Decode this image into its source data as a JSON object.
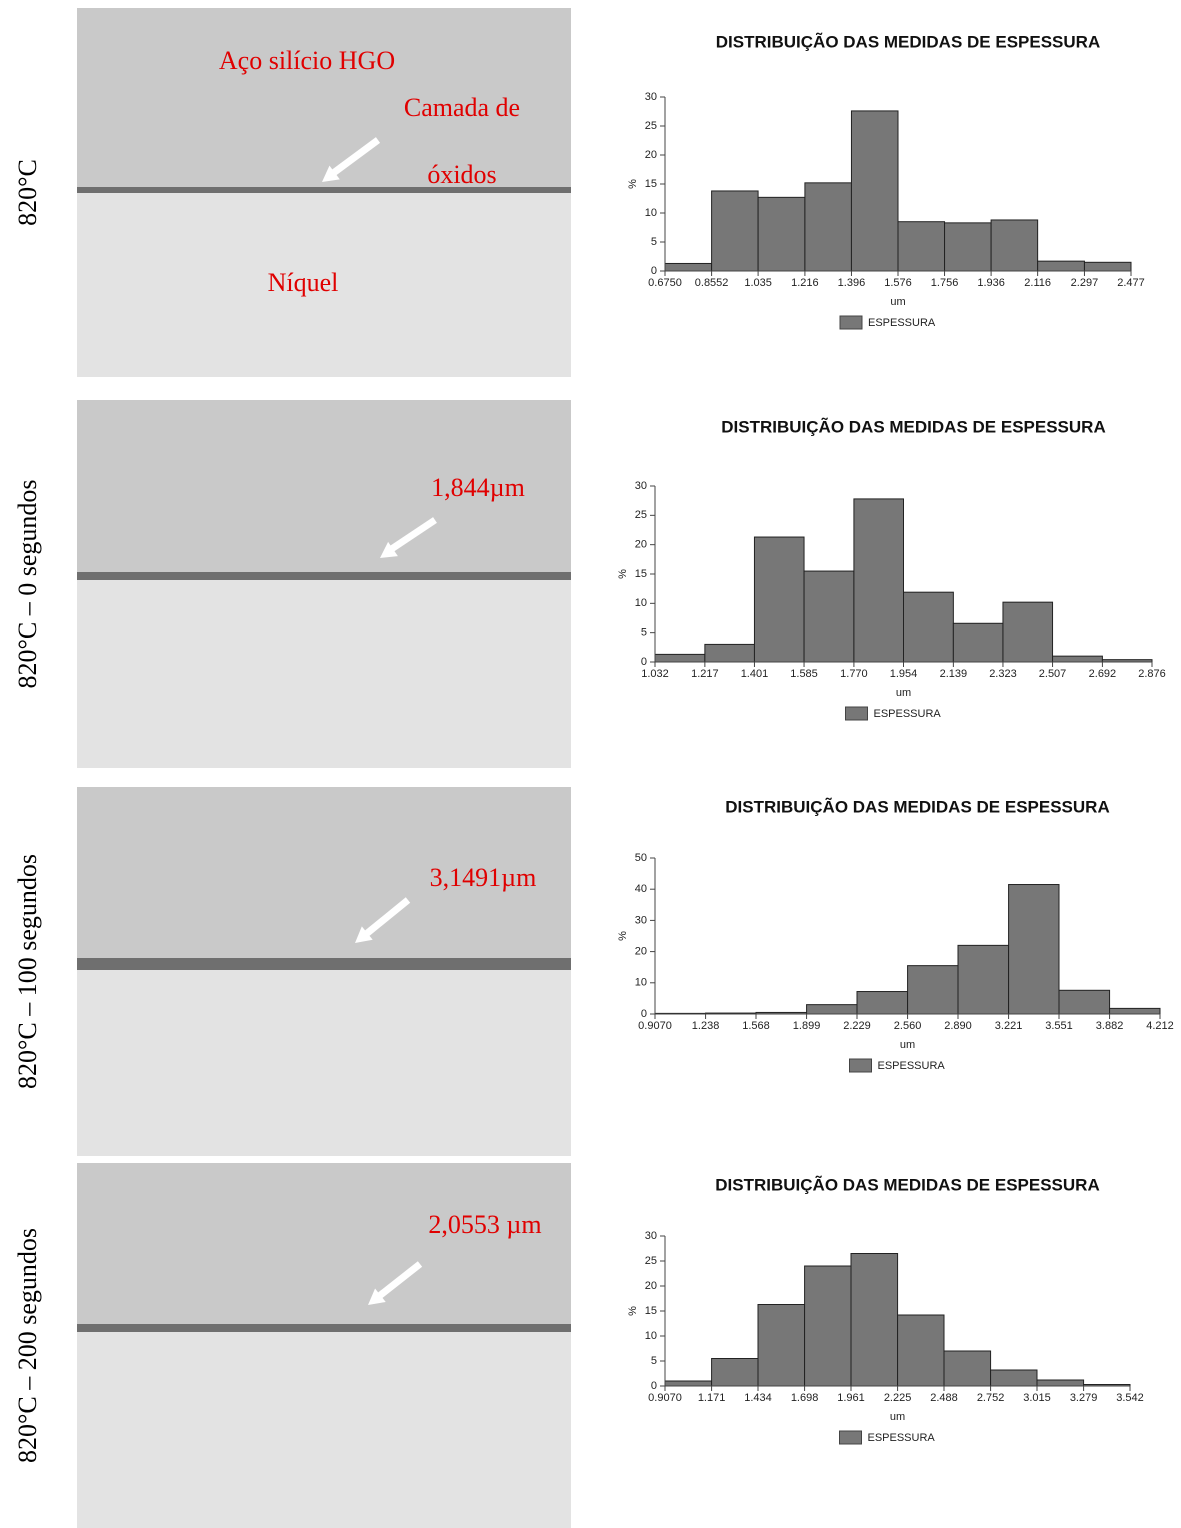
{
  "rows": [
    {
      "label": "820°C",
      "annotations": [
        "Aço silício HGO",
        "Camada de",
        "óxidos",
        "Níquel"
      ]
    },
    {
      "label": "820°C – 0 segundos",
      "annotations": [
        "1,844µm"
      ]
    },
    {
      "label": "820°C – 100 segundos",
      "annotations": [
        "3,1491µm"
      ]
    },
    {
      "label": "820°C – 200 segundos",
      "annotations": [
        "2,0553 µm"
      ]
    }
  ],
  "chart_data": [
    {
      "type": "histogram",
      "title": "DISTRIBUIÇÃO DAS MEDIDAS DE ESPESSURA",
      "x_label": "um",
      "y_label": "%",
      "bins": [
        0.675,
        0.8552,
        1.035,
        1.216,
        1.396,
        1.576,
        1.756,
        1.936,
        2.116,
        2.297,
        2.477
      ],
      "series": [
        {
          "name": "ESPESSURA",
          "color": "#777777",
          "values": [
            1.3,
            13.8,
            12.7,
            15.2,
            27.6,
            8.5,
            8.3,
            8.8,
            1.7,
            1.5
          ]
        }
      ],
      "xlim": [
        0.675,
        2.477
      ],
      "ylim": [
        0,
        30
      ],
      "xticks": [
        {
          "value": 0.675,
          "label": "0.6750"
        },
        0.8552,
        1.035,
        1.216,
        1.396,
        1.576,
        1.756,
        1.936,
        2.116,
        2.297,
        2.477
      ],
      "yticks": [
        0,
        5,
        10,
        15,
        20,
        25,
        30
      ]
    },
    {
      "type": "histogram",
      "title": "DISTRIBUIÇÃO DAS MEDIDAS DE ESPESSURA",
      "x_label": "um",
      "y_label": "%",
      "bins": [
        1.032,
        1.217,
        1.401,
        1.585,
        1.77,
        1.954,
        2.139,
        2.323,
        2.507,
        2.692,
        2.876
      ],
      "series": [
        {
          "name": "ESPESSURA",
          "color": "#777777",
          "values": [
            1.3,
            3.0,
            21.3,
            15.5,
            27.8,
            11.9,
            6.6,
            10.2,
            1.0,
            0.4
          ]
        }
      ],
      "xlim": [
        1.032,
        2.876
      ],
      "ylim": [
        0,
        30
      ],
      "xticks": [
        1.032,
        1.217,
        1.401,
        1.585,
        {
          "value": 1.77,
          "label": "1.770"
        },
        1.954,
        2.139,
        2.323,
        2.507,
        2.692,
        2.876
      ],
      "yticks": [
        0,
        5,
        10,
        15,
        20,
        25,
        30
      ]
    },
    {
      "type": "histogram",
      "title": "DISTRIBUIÇÃO DAS MEDIDAS DE ESPESSURA",
      "x_label": "um",
      "y_label": "%",
      "bins": [
        0.907,
        1.238,
        1.568,
        1.899,
        2.229,
        2.56,
        2.89,
        3.221,
        3.551,
        3.882,
        4.212
      ],
      "series": [
        {
          "name": "ESPESSURA",
          "color": "#777777",
          "values": [
            0.2,
            0.3,
            0.5,
            3.0,
            7.2,
            15.5,
            22.0,
            41.5,
            7.6,
            1.8
          ]
        }
      ],
      "xlim": [
        0.907,
        4.212
      ],
      "ylim": [
        0,
        50
      ],
      "xticks": [
        {
          "value": 0.907,
          "label": "0.9070"
        },
        1.238,
        1.568,
        1.899,
        2.229,
        {
          "value": 2.56,
          "label": "2.560"
        },
        {
          "value": 2.89,
          "label": "2.890"
        },
        3.221,
        3.551,
        3.882,
        4.212
      ],
      "yticks": [
        0,
        10,
        20,
        30,
        40,
        50
      ]
    },
    {
      "type": "histogram",
      "title": "DISTRIBUIÇÃO DAS MEDIDAS DE ESPESSURA",
      "x_label": "um",
      "y_label": "%",
      "bins": [
        0.907,
        1.171,
        1.434,
        1.698,
        1.961,
        2.225,
        2.488,
        2.752,
        3.015,
        3.279,
        3.542
      ],
      "series": [
        {
          "name": "ESPESSURA",
          "color": "#777777",
          "values": [
            1.0,
            5.5,
            16.3,
            24.0,
            26.5,
            14.2,
            7.0,
            3.2,
            1.2,
            0.3
          ]
        }
      ],
      "xlim": [
        0.907,
        3.542
      ],
      "ylim": [
        0,
        30
      ],
      "xticks": [
        {
          "value": 0.907,
          "label": "0.9070"
        },
        1.171,
        1.434,
        1.698,
        1.961,
        2.225,
        2.488,
        2.752,
        3.015,
        3.279,
        3.542
      ],
      "yticks": [
        0,
        5,
        10,
        15,
        20,
        25,
        30
      ]
    }
  ]
}
